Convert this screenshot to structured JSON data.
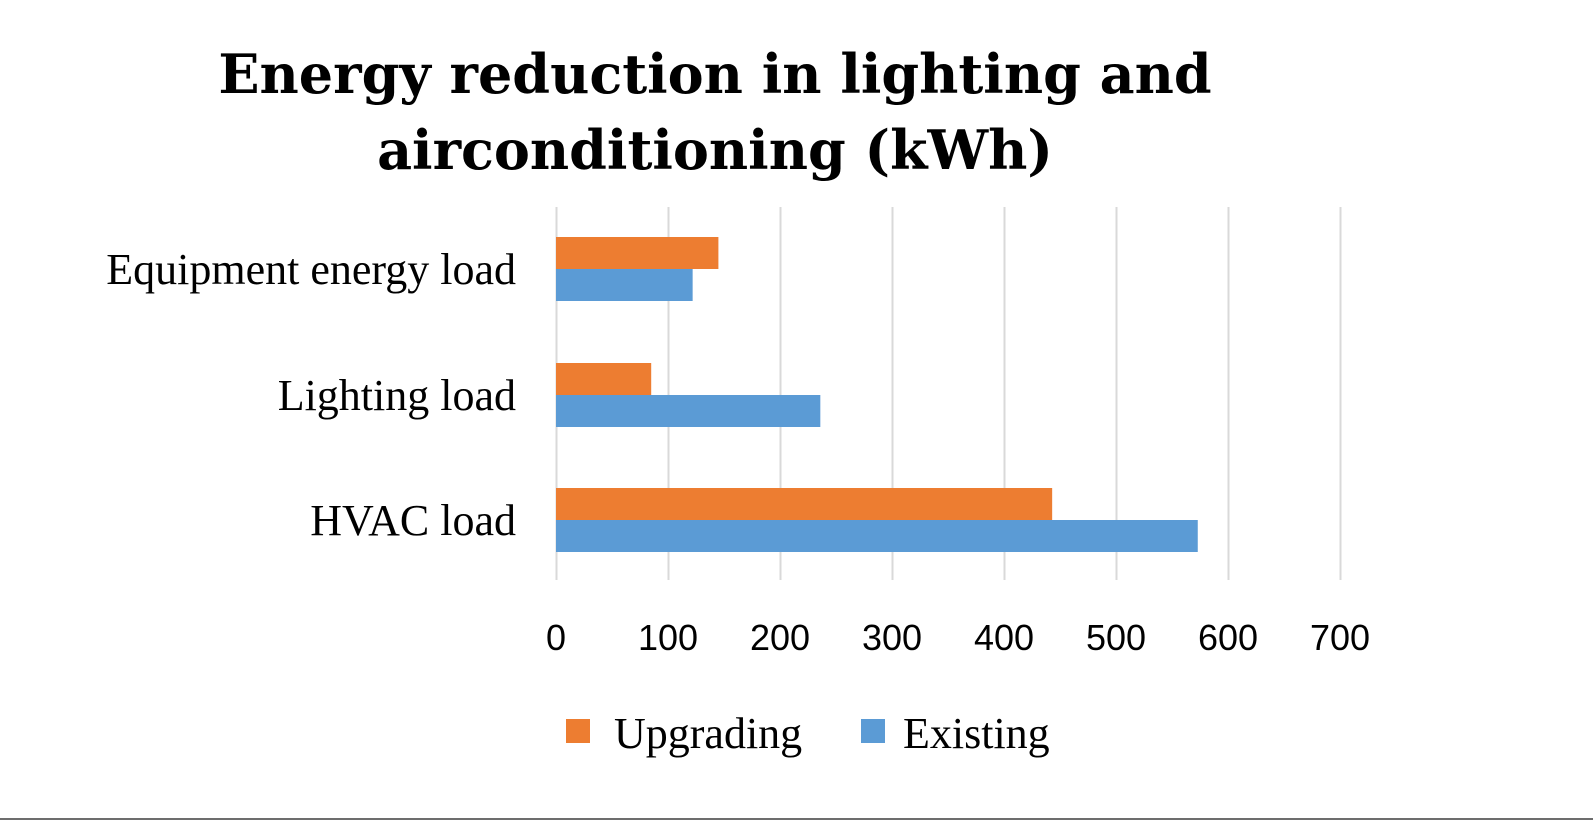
{
  "chart_data": {
    "type": "bar",
    "orientation": "horizontal",
    "title_lines": [
      "Energy reduction in lighting and",
      "airconditioning (kWh)"
    ],
    "categories": [
      "Equipment energy load",
      "Lighting load",
      "HVAC load"
    ],
    "series": [
      {
        "name": "Upgrading",
        "color": "#ED7D31",
        "values": [
          145,
          85,
          443
        ]
      },
      {
        "name": "Existing",
        "color": "#5B9BD5",
        "values": [
          122,
          236,
          573
        ]
      }
    ],
    "xlim": [
      0,
      700
    ],
    "xticks": [
      0,
      100,
      200,
      300,
      400,
      500,
      600,
      700
    ],
    "xtick_labels": [
      "0",
      "100",
      "200",
      "300",
      "400",
      "500",
      "600",
      "700"
    ],
    "grid": true,
    "gridline_color": "#D9D9D9",
    "legend_position": "bottom"
  }
}
